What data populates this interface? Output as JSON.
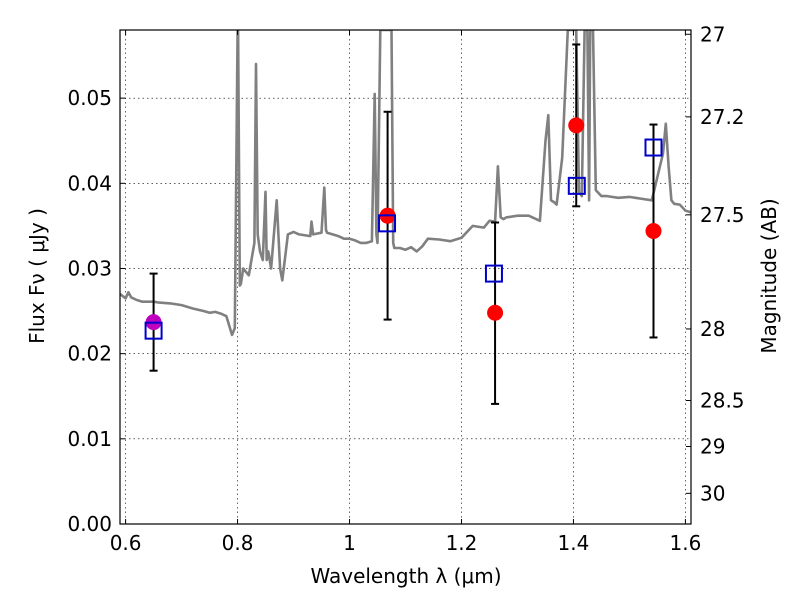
{
  "chart_data": {
    "type": "scatter",
    "title": "",
    "xlabel": "Wavelength  λ (μm)",
    "ylabel": "Flux  Fν  ( μJy )",
    "y2label": "Magnitude (AB)",
    "xlim": [
      0.59,
      1.61
    ],
    "ylim": [
      0.0,
      0.058
    ],
    "x_ticks": [
      0.6,
      0.8,
      1.0,
      1.2,
      1.4,
      1.6
    ],
    "x_tick_labels": [
      "0.6",
      "0.8",
      "1",
      "1.2",
      "1.4",
      "1.6"
    ],
    "y_ticks": [
      0.0,
      0.01,
      0.02,
      0.03,
      0.04,
      0.05
    ],
    "y_tick_labels": [
      "0.00",
      "0.01",
      "0.02",
      "0.03",
      "0.04",
      "0.05"
    ],
    "y2_ticks": [
      {
        "label": "27",
        "flux": 0.0575
      },
      {
        "label": "27.2",
        "flux": 0.0478
      },
      {
        "label": "27.5",
        "flux": 0.0363
      },
      {
        "label": "28",
        "flux": 0.0229
      },
      {
        "label": "28.5",
        "flux": 0.0145
      },
      {
        "label": "29",
        "flux": 0.0091
      },
      {
        "label": "30",
        "flux": 0.0036
      }
    ],
    "grid": true,
    "grid_style": "dotted",
    "series": [
      {
        "kind": "line",
        "color": "#808080",
        "x": [
          0.59,
          0.6,
          0.605,
          0.61,
          0.62,
          0.63,
          0.64,
          0.65,
          0.66,
          0.68,
          0.7,
          0.72,
          0.74,
          0.75,
          0.76,
          0.77,
          0.78,
          0.79,
          0.795,
          0.8,
          0.801,
          0.804,
          0.806,
          0.81,
          0.82,
          0.83,
          0.833,
          0.836,
          0.84,
          0.845,
          0.85,
          0.852,
          0.855,
          0.86,
          0.87,
          0.876,
          0.88,
          0.89,
          0.9,
          0.91,
          0.93,
          0.932,
          0.935,
          0.95,
          0.955,
          0.958,
          0.96,
          0.97,
          0.98,
          0.99,
          1.0,
          1.01,
          1.02,
          1.03,
          1.04,
          1.045,
          1.048,
          1.05,
          1.055,
          1.06,
          1.07,
          1.075,
          1.078,
          1.08,
          1.09,
          1.1,
          1.11,
          1.12,
          1.13,
          1.14,
          1.16,
          1.18,
          1.2,
          1.22,
          1.24,
          1.25,
          1.26,
          1.265,
          1.27,
          1.275,
          1.28,
          1.3,
          1.32,
          1.34,
          1.35,
          1.355,
          1.36,
          1.365,
          1.37,
          1.38,
          1.39,
          1.4,
          1.405,
          1.41,
          1.415,
          1.42,
          1.425,
          1.428,
          1.43,
          1.435,
          1.44,
          1.45,
          1.46,
          1.48,
          1.5,
          1.52,
          1.54,
          1.56,
          1.565,
          1.57,
          1.575,
          1.58,
          1.59,
          1.6,
          1.61
        ],
        "y": [
          0.027,
          0.0265,
          0.0272,
          0.0266,
          0.0263,
          0.0261,
          0.0261,
          0.0261,
          0.026,
          0.0259,
          0.0257,
          0.0253,
          0.025,
          0.0248,
          0.0249,
          0.0247,
          0.0244,
          0.0222,
          0.023,
          0.058,
          0.058,
          0.028,
          0.0282,
          0.03,
          0.0292,
          0.033,
          0.054,
          0.034,
          0.032,
          0.031,
          0.039,
          0.031,
          0.032,
          0.03,
          0.038,
          0.03,
          0.0286,
          0.034,
          0.0343,
          0.034,
          0.0338,
          0.0355,
          0.034,
          0.0342,
          0.0395,
          0.0345,
          0.0342,
          0.034,
          0.0338,
          0.0335,
          0.0335,
          0.0333,
          0.033,
          0.033,
          0.0332,
          0.0505,
          0.034,
          0.033,
          0.058,
          0.058,
          0.058,
          0.058,
          0.033,
          0.0324,
          0.0324,
          0.0322,
          0.0325,
          0.032,
          0.0326,
          0.0335,
          0.0334,
          0.0332,
          0.0336,
          0.035,
          0.0348,
          0.0356,
          0.0355,
          0.042,
          0.036,
          0.0358,
          0.036,
          0.0362,
          0.0362,
          0.0356,
          0.045,
          0.048,
          0.038,
          0.0378,
          0.0375,
          0.043,
          0.058,
          0.058,
          0.058,
          0.039,
          0.0385,
          0.058,
          0.058,
          0.038,
          0.058,
          0.058,
          0.0392,
          0.0385,
          0.0385,
          0.0383,
          0.0384,
          0.0382,
          0.038,
          0.0435,
          0.047,
          0.042,
          0.038,
          0.0376,
          0.0375,
          0.0368,
          0.0366
        ]
      },
      {
        "kind": "points",
        "marker": "circle",
        "color": "#ff0000",
        "points": [
          {
            "x": 1.068,
            "y": 0.0362,
            "y_low": 0.024,
            "y_high": 0.0484
          },
          {
            "x": 1.26,
            "y": 0.0248,
            "y_low": 0.0141,
            "y_high": 0.0354
          },
          {
            "x": 1.405,
            "y": 0.0468,
            "y_low": 0.0373,
            "y_high": 0.0563
          },
          {
            "x": 1.543,
            "y": 0.0344,
            "y_low": 0.0219,
            "y_high": 0.0469
          }
        ]
      },
      {
        "kind": "points",
        "marker": "circle",
        "color": "#bf00bf",
        "points": [
          {
            "x": 0.65,
            "y": 0.0237,
            "y_low": 0.018,
            "y_high": 0.0294
          }
        ]
      },
      {
        "kind": "points",
        "marker": "open-square",
        "color": "#0000cc",
        "points": [
          {
            "x": 0.65,
            "y": 0.0227
          },
          {
            "x": 1.067,
            "y": 0.0353
          },
          {
            "x": 1.258,
            "y": 0.0294
          },
          {
            "x": 1.406,
            "y": 0.0397
          },
          {
            "x": 1.543,
            "y": 0.0442
          }
        ]
      }
    ]
  }
}
